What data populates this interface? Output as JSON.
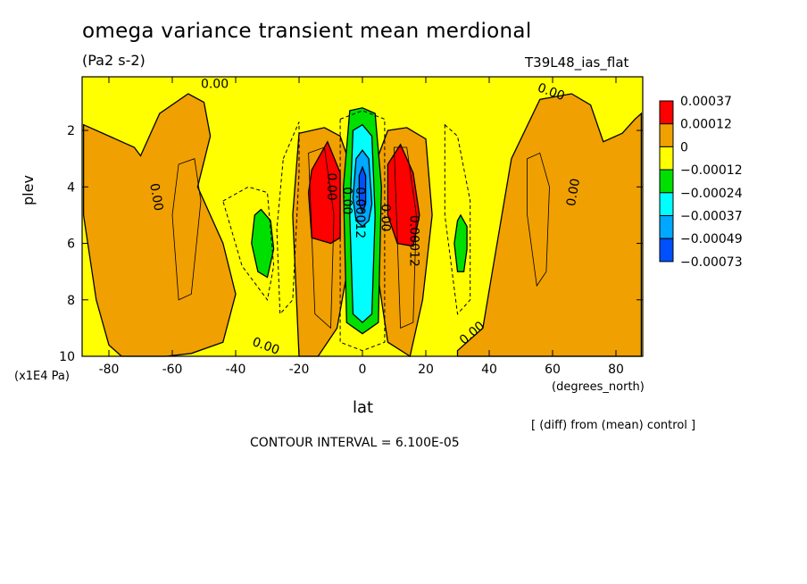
{
  "chart_data": {
    "type": "heatmap",
    "title": "omega variance transient mean merdional",
    "units": "(Pa2 s-2)",
    "run_label": "T39L48_ias_flat",
    "xlabel": "lat",
    "xunit": "(degrees_north)",
    "ylabel": "plev",
    "yunit": "(x1E4 Pa)",
    "note": "[ (diff) from (mean) control ]",
    "contour_interval": "CONTOUR INTERVAL = 6.100E-05",
    "x_ticks": [
      "-80",
      "-60",
      "-40",
      "-20",
      "0",
      "20",
      "40",
      "60",
      "80"
    ],
    "y_ticks": [
      "2",
      "4",
      "6",
      "8",
      "10"
    ],
    "xlim": [
      -88,
      88
    ],
    "ylim": [
      10,
      0.1
    ],
    "legend": {
      "placement": "right",
      "labels": [
        "0.00037",
        "0.00012",
        "0",
        "−0.00012",
        "−0.00024",
        "−0.00037",
        "−0.00049",
        "−0.00073"
      ],
      "colors": [
        "#ff0000",
        "#f0a000",
        "#ffff00",
        "#00e000",
        "#00ffff",
        "#00a8ff",
        "#0050ff"
      ]
    },
    "contour_labels": [
      "0.00",
      "0.00",
      "0.00",
      "0.00",
      "0.00",
      "0.00",
      "0.00",
      "0.00012",
      "0.00",
      "0.00012",
      "0.00"
    ],
    "regions": [
      {
        "level": "orange",
        "x": [
          -88,
          -72,
          -70,
          -64,
          -55,
          -50,
          -48,
          -52,
          -44,
          -40,
          -44,
          -54,
          -62,
          -70,
          -76,
          -80,
          -84,
          -88
        ],
        "y": [
          1.8,
          2.6,
          2.9,
          1.4,
          0.7,
          1.0,
          2.2,
          4.0,
          6.0,
          7.8,
          9.5,
          9.9,
          10,
          10,
          10,
          9.6,
          8.0,
          5.0
        ]
      },
      {
        "level": "orange",
        "x": [
          -20,
          -12,
          -7,
          -3,
          -4,
          -8,
          -14,
          -20,
          -22
        ],
        "y": [
          2.1,
          1.9,
          2.2,
          3.5,
          6.5,
          9.0,
          10,
          10,
          5.0
        ]
      },
      {
        "level": "orange",
        "x": [
          4,
          8,
          14,
          20,
          22,
          19,
          15,
          8,
          4
        ],
        "y": [
          3.2,
          2.0,
          1.9,
          2.3,
          5.0,
          8.0,
          10,
          9.5,
          6.5
        ]
      },
      {
        "level": "orange",
        "x": [
          30,
          38,
          41,
          47,
          56,
          66,
          72,
          76,
          82,
          86,
          88,
          88,
          86,
          80,
          72,
          60,
          40,
          30
        ],
        "y": [
          9.8,
          9.0,
          7.0,
          3.0,
          0.9,
          0.7,
          1.1,
          2.4,
          2.1,
          1.6,
          1.4,
          10,
          10,
          10,
          10,
          10,
          10,
          10
        ]
      },
      {
        "level": "green",
        "x": [
          -4,
          0,
          4,
          6,
          5,
          0,
          -5,
          -6
        ],
        "y": [
          1.3,
          1.2,
          1.4,
          4.0,
          8.8,
          9.2,
          8.8,
          4.0
        ]
      },
      {
        "level": "green",
        "x": [
          -34,
          -32,
          -29,
          -28,
          -30,
          -33,
          -35
        ],
        "y": [
          5.0,
          4.8,
          5.2,
          6.2,
          7.2,
          7.0,
          6.0
        ]
      },
      {
        "level": "green",
        "x": [
          30,
          31,
          33,
          33,
          32,
          30,
          29
        ],
        "y": [
          5.2,
          5.0,
          5.4,
          6.2,
          7.0,
          7.0,
          6.0
        ]
      },
      {
        "level": "cyan",
        "x": [
          -3,
          0,
          3,
          4,
          3,
          0,
          -3,
          -4
        ],
        "y": [
          2.0,
          1.8,
          2.2,
          5.0,
          8.5,
          8.8,
          8.5,
          5.0
        ]
      },
      {
        "level": "blue",
        "x": [
          -2,
          0,
          2,
          3,
          2,
          0,
          -2,
          -3
        ],
        "y": [
          3.0,
          2.7,
          3.0,
          4.6,
          5.2,
          5.4,
          5.2,
          4.4
        ]
      },
      {
        "level": "darkblue",
        "x": [
          -1,
          0,
          1,
          1,
          0,
          -1
        ],
        "y": [
          3.6,
          3.3,
          3.6,
          4.6,
          4.9,
          4.6
        ]
      },
      {
        "level": "red",
        "x": [
          -16,
          -11,
          -7,
          -7,
          -10,
          -16,
          -17
        ],
        "y": [
          3.4,
          2.4,
          3.5,
          5.8,
          6.0,
          5.8,
          4.2
        ]
      },
      {
        "level": "red",
        "x": [
          8,
          12,
          16,
          18,
          16,
          11,
          8
        ],
        "y": [
          3.2,
          2.5,
          3.5,
          5.0,
          6.1,
          6.0,
          5.0
        ]
      }
    ]
  }
}
